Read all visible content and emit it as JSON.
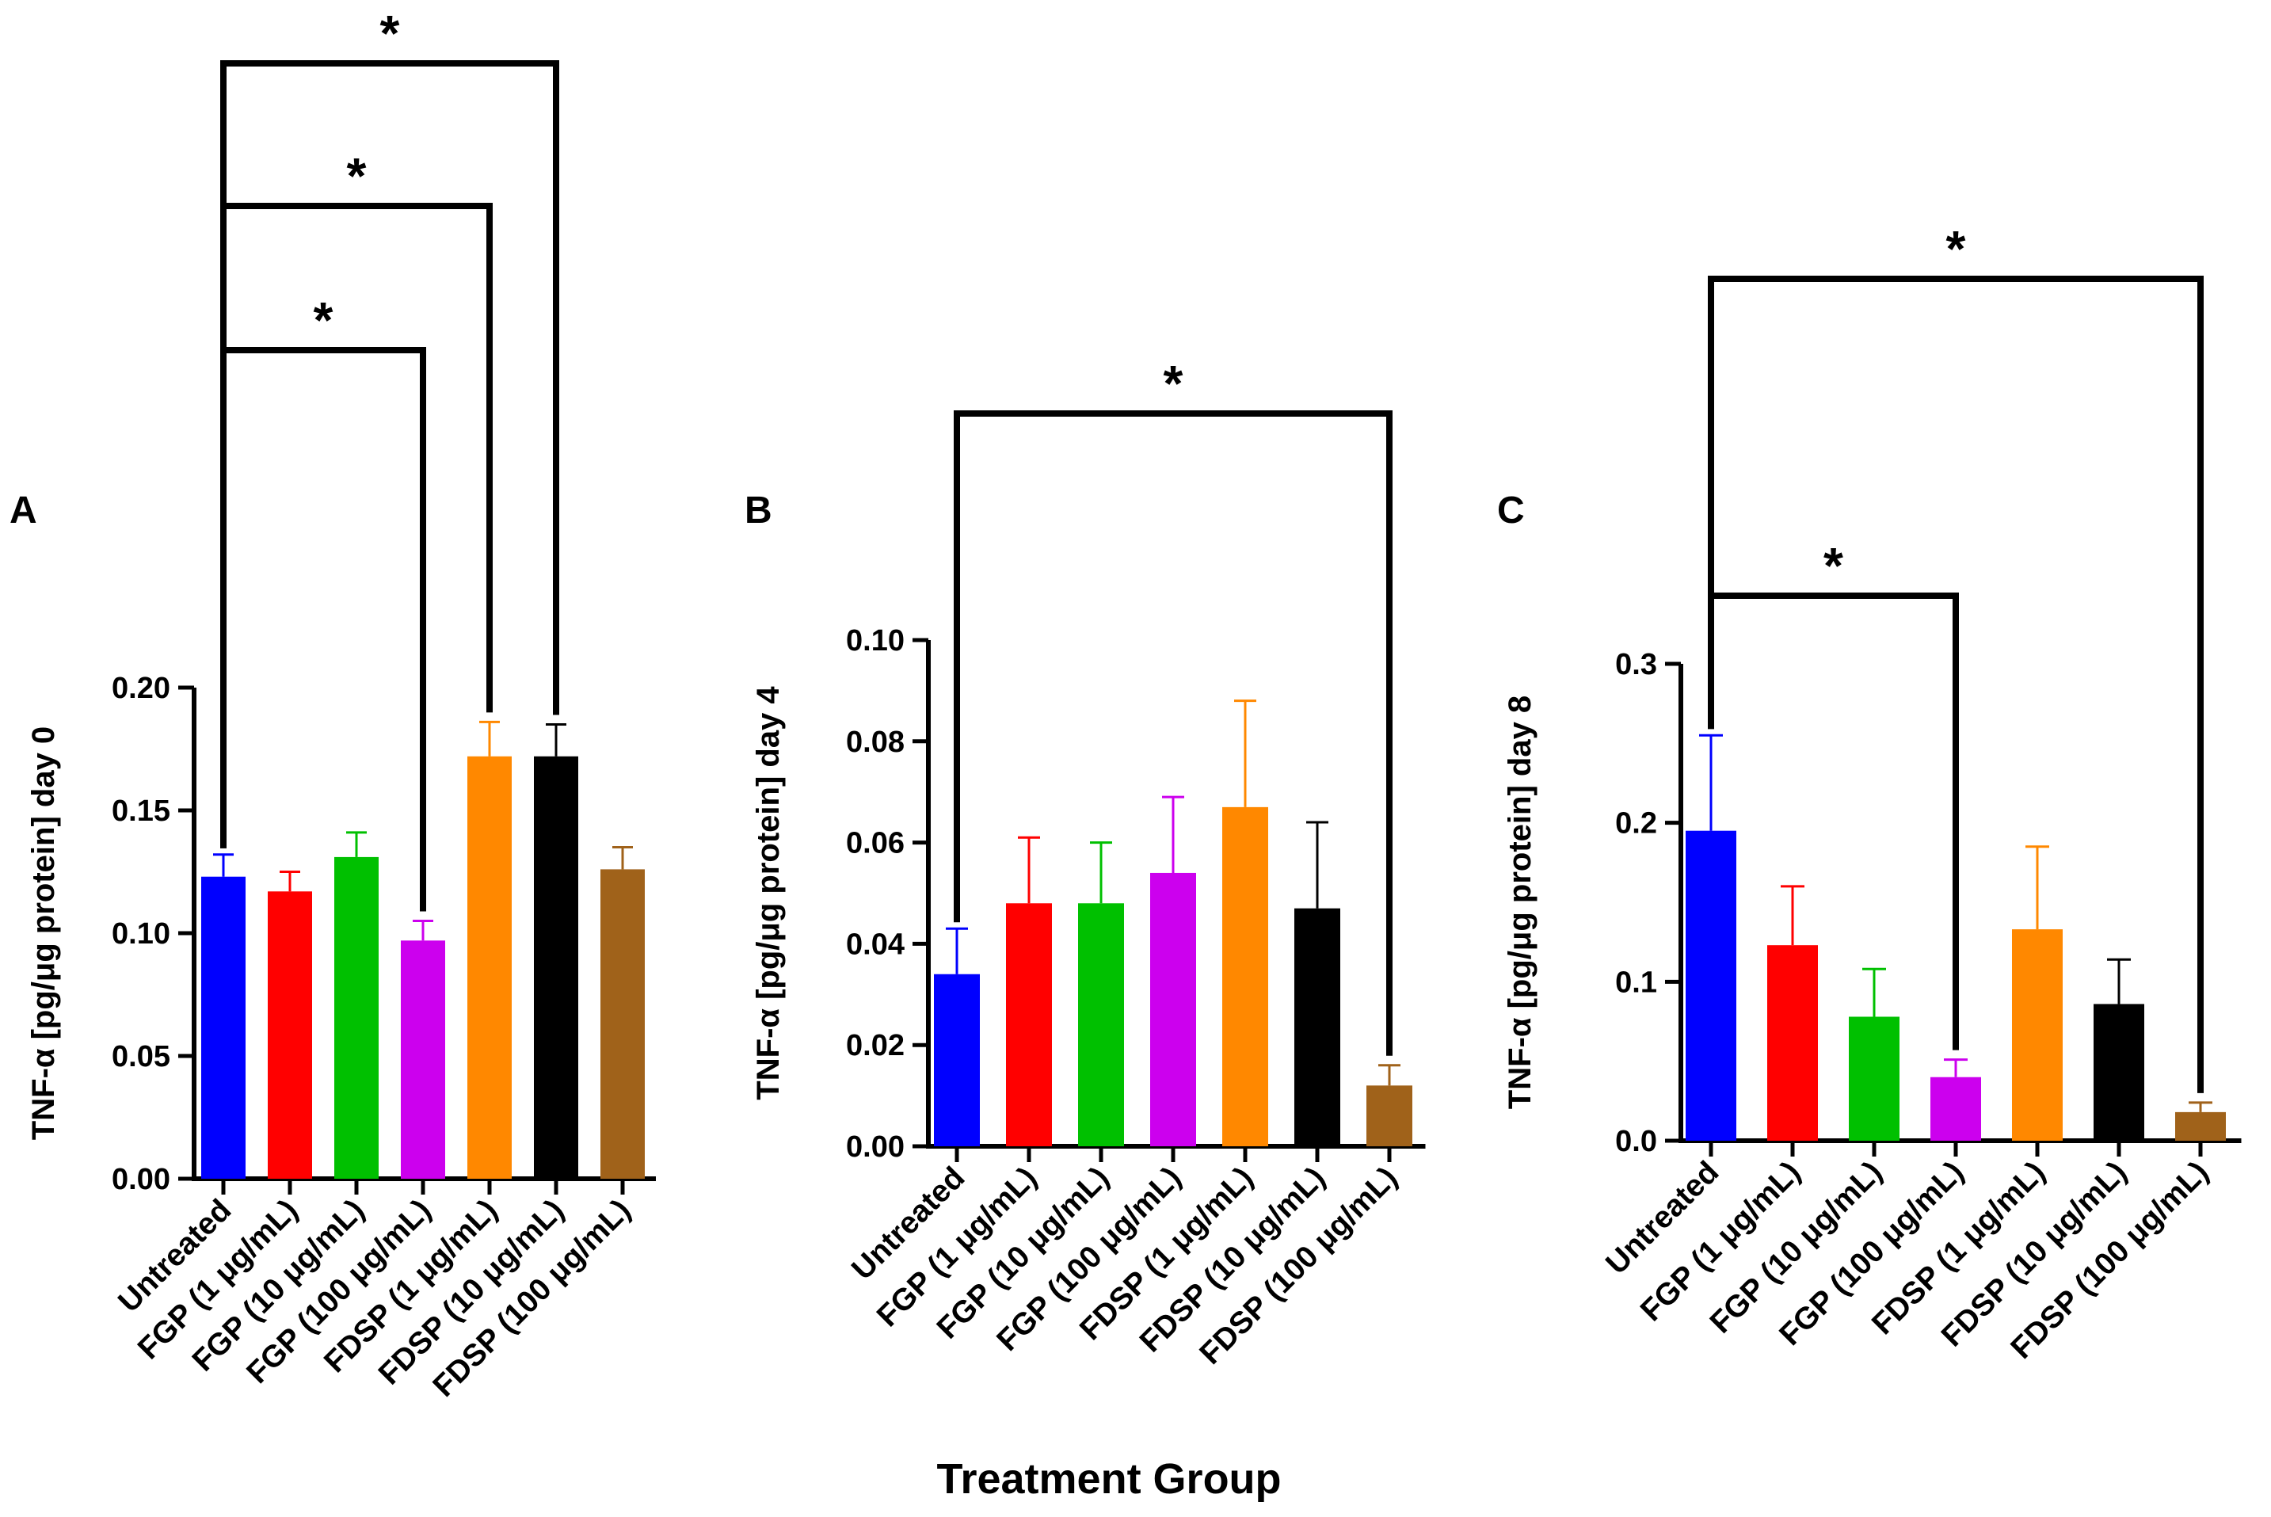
{
  "figure": {
    "xlabel": "Treatment Group",
    "categories": [
      "Untreated",
      "FGP (1 μg/mL)",
      "FGP (10 μg/mL)",
      "FGP (100 μg/mL)",
      "FDSP (1 μg/mL)",
      "FDSP (10 μg/mL)",
      "FDSP (100 μg/mL)"
    ],
    "colors": [
      "#0000ff",
      "#ff0000",
      "#00c000",
      "#cc00ee",
      "#ff8800",
      "#000000",
      "#a0621a"
    ],
    "significance_marker": "*"
  },
  "chart_data": [
    {
      "type": "bar",
      "panel": "A",
      "ylabel": "TNF-α [pg/μg protein] day 0",
      "ylim": [
        0,
        0.2
      ],
      "yticks": [
        0.0,
        0.05,
        0.1,
        0.15,
        0.2
      ],
      "ytick_labels": [
        "0.00",
        "0.05",
        "0.10",
        "0.15",
        "0.20"
      ],
      "values": [
        0.123,
        0.117,
        0.131,
        0.097,
        0.172,
        0.172,
        0.126
      ],
      "errors": [
        0.009,
        0.008,
        0.01,
        0.008,
        0.014,
        0.013,
        0.009
      ],
      "comparisons": [
        {
          "from": 0,
          "to": 3,
          "label": "*"
        },
        {
          "from": 0,
          "to": 4,
          "label": "*"
        },
        {
          "from": 0,
          "to": 5,
          "label": "*"
        }
      ]
    },
    {
      "type": "bar",
      "panel": "B",
      "ylabel": "TNF-α [pg/μg protein] day 4",
      "ylim": [
        0,
        0.1
      ],
      "yticks": [
        0.0,
        0.02,
        0.04,
        0.06,
        0.08,
        0.1
      ],
      "ytick_labels": [
        "0.00",
        "0.02",
        "0.04",
        "0.06",
        "0.08",
        "0.10"
      ],
      "values": [
        0.034,
        0.048,
        0.048,
        0.054,
        0.067,
        0.047,
        0.012
      ],
      "errors": [
        0.009,
        0.013,
        0.012,
        0.015,
        0.021,
        0.017,
        0.004
      ],
      "comparisons": [
        {
          "from": 0,
          "to": 6,
          "label": "*"
        }
      ]
    },
    {
      "type": "bar",
      "panel": "C",
      "ylabel": "TNF-α [pg/μg protein] day 8",
      "ylim": [
        0,
        0.3
      ],
      "yticks": [
        0.0,
        0.1,
        0.2,
        0.3
      ],
      "ytick_labels": [
        "0.0",
        "0.1",
        "0.2",
        "0.3"
      ],
      "values": [
        0.195,
        0.123,
        0.078,
        0.04,
        0.133,
        0.086,
        0.018
      ],
      "errors": [
        0.06,
        0.037,
        0.03,
        0.011,
        0.052,
        0.028,
        0.006
      ],
      "comparisons": [
        {
          "from": 0,
          "to": 3,
          "label": "*"
        },
        {
          "from": 0,
          "to": 6,
          "label": "*"
        }
      ]
    }
  ]
}
